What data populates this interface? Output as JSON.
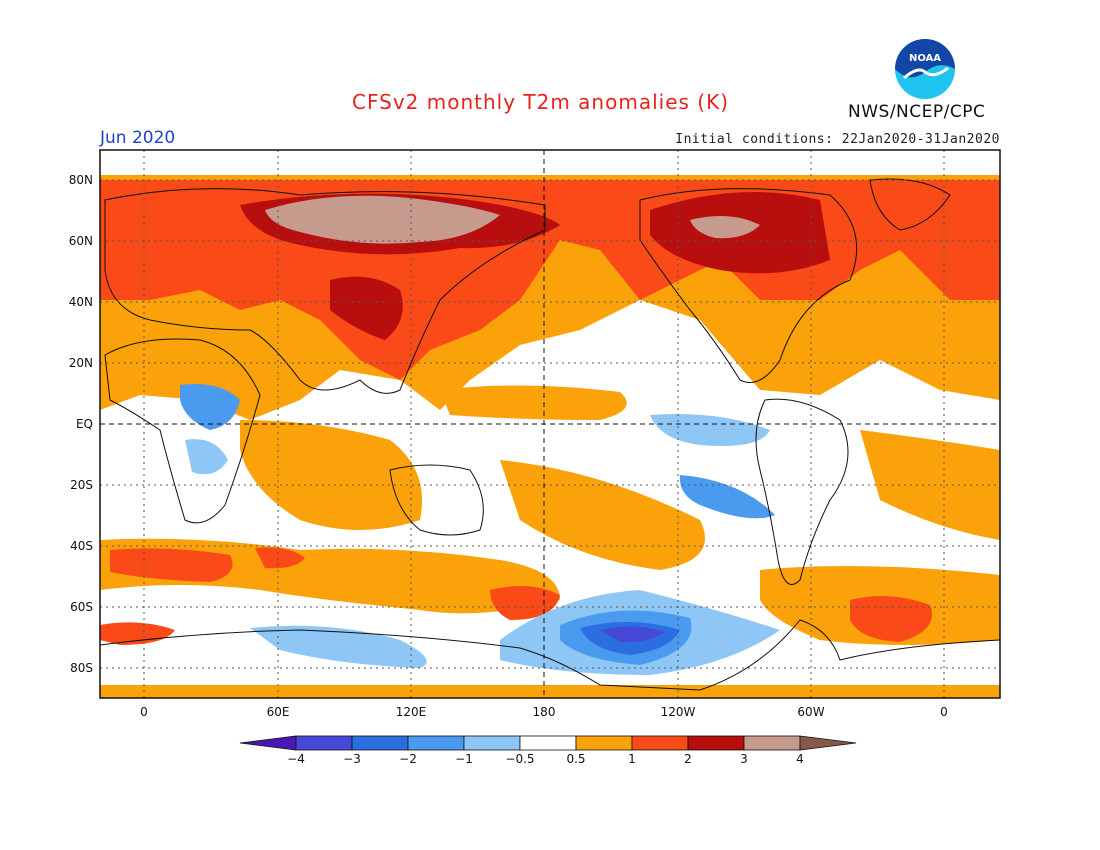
{
  "header": {
    "title": "CFSv2 monthly T2m anomalies (K)",
    "month": "Jun 2020",
    "initial_conditions": "Initial conditions: 22Jan2020-31Jan2020",
    "agency": "NWS/NCEP/CPC",
    "logo_text": "NOAA"
  },
  "map": {
    "lat_labels": [
      "80N",
      "60N",
      "40N",
      "20N",
      "EQ",
      "20S",
      "40S",
      "60S",
      "80S"
    ],
    "lon_labels": [
      "0",
      "60E",
      "120E",
      "180",
      "120W",
      "60W",
      "0"
    ]
  },
  "colorbar": {
    "tick_labels": [
      "−4",
      "−3",
      "−2",
      "−1",
      "−0.5",
      "0.5",
      "1",
      "2",
      "3",
      "4"
    ],
    "colors": [
      "#4a18b0",
      "#4848d8",
      "#2a6ee0",
      "#4a9af0",
      "#8ec6f5",
      "#ffffff",
      "#fba20a",
      "#fa4a18",
      "#b80e0e",
      "#c79a8e",
      "#86584a"
    ]
  },
  "colors": {
    "title": "#e8231c",
    "month": "#2340c8",
    "ocean_background": "#ffffff"
  }
}
